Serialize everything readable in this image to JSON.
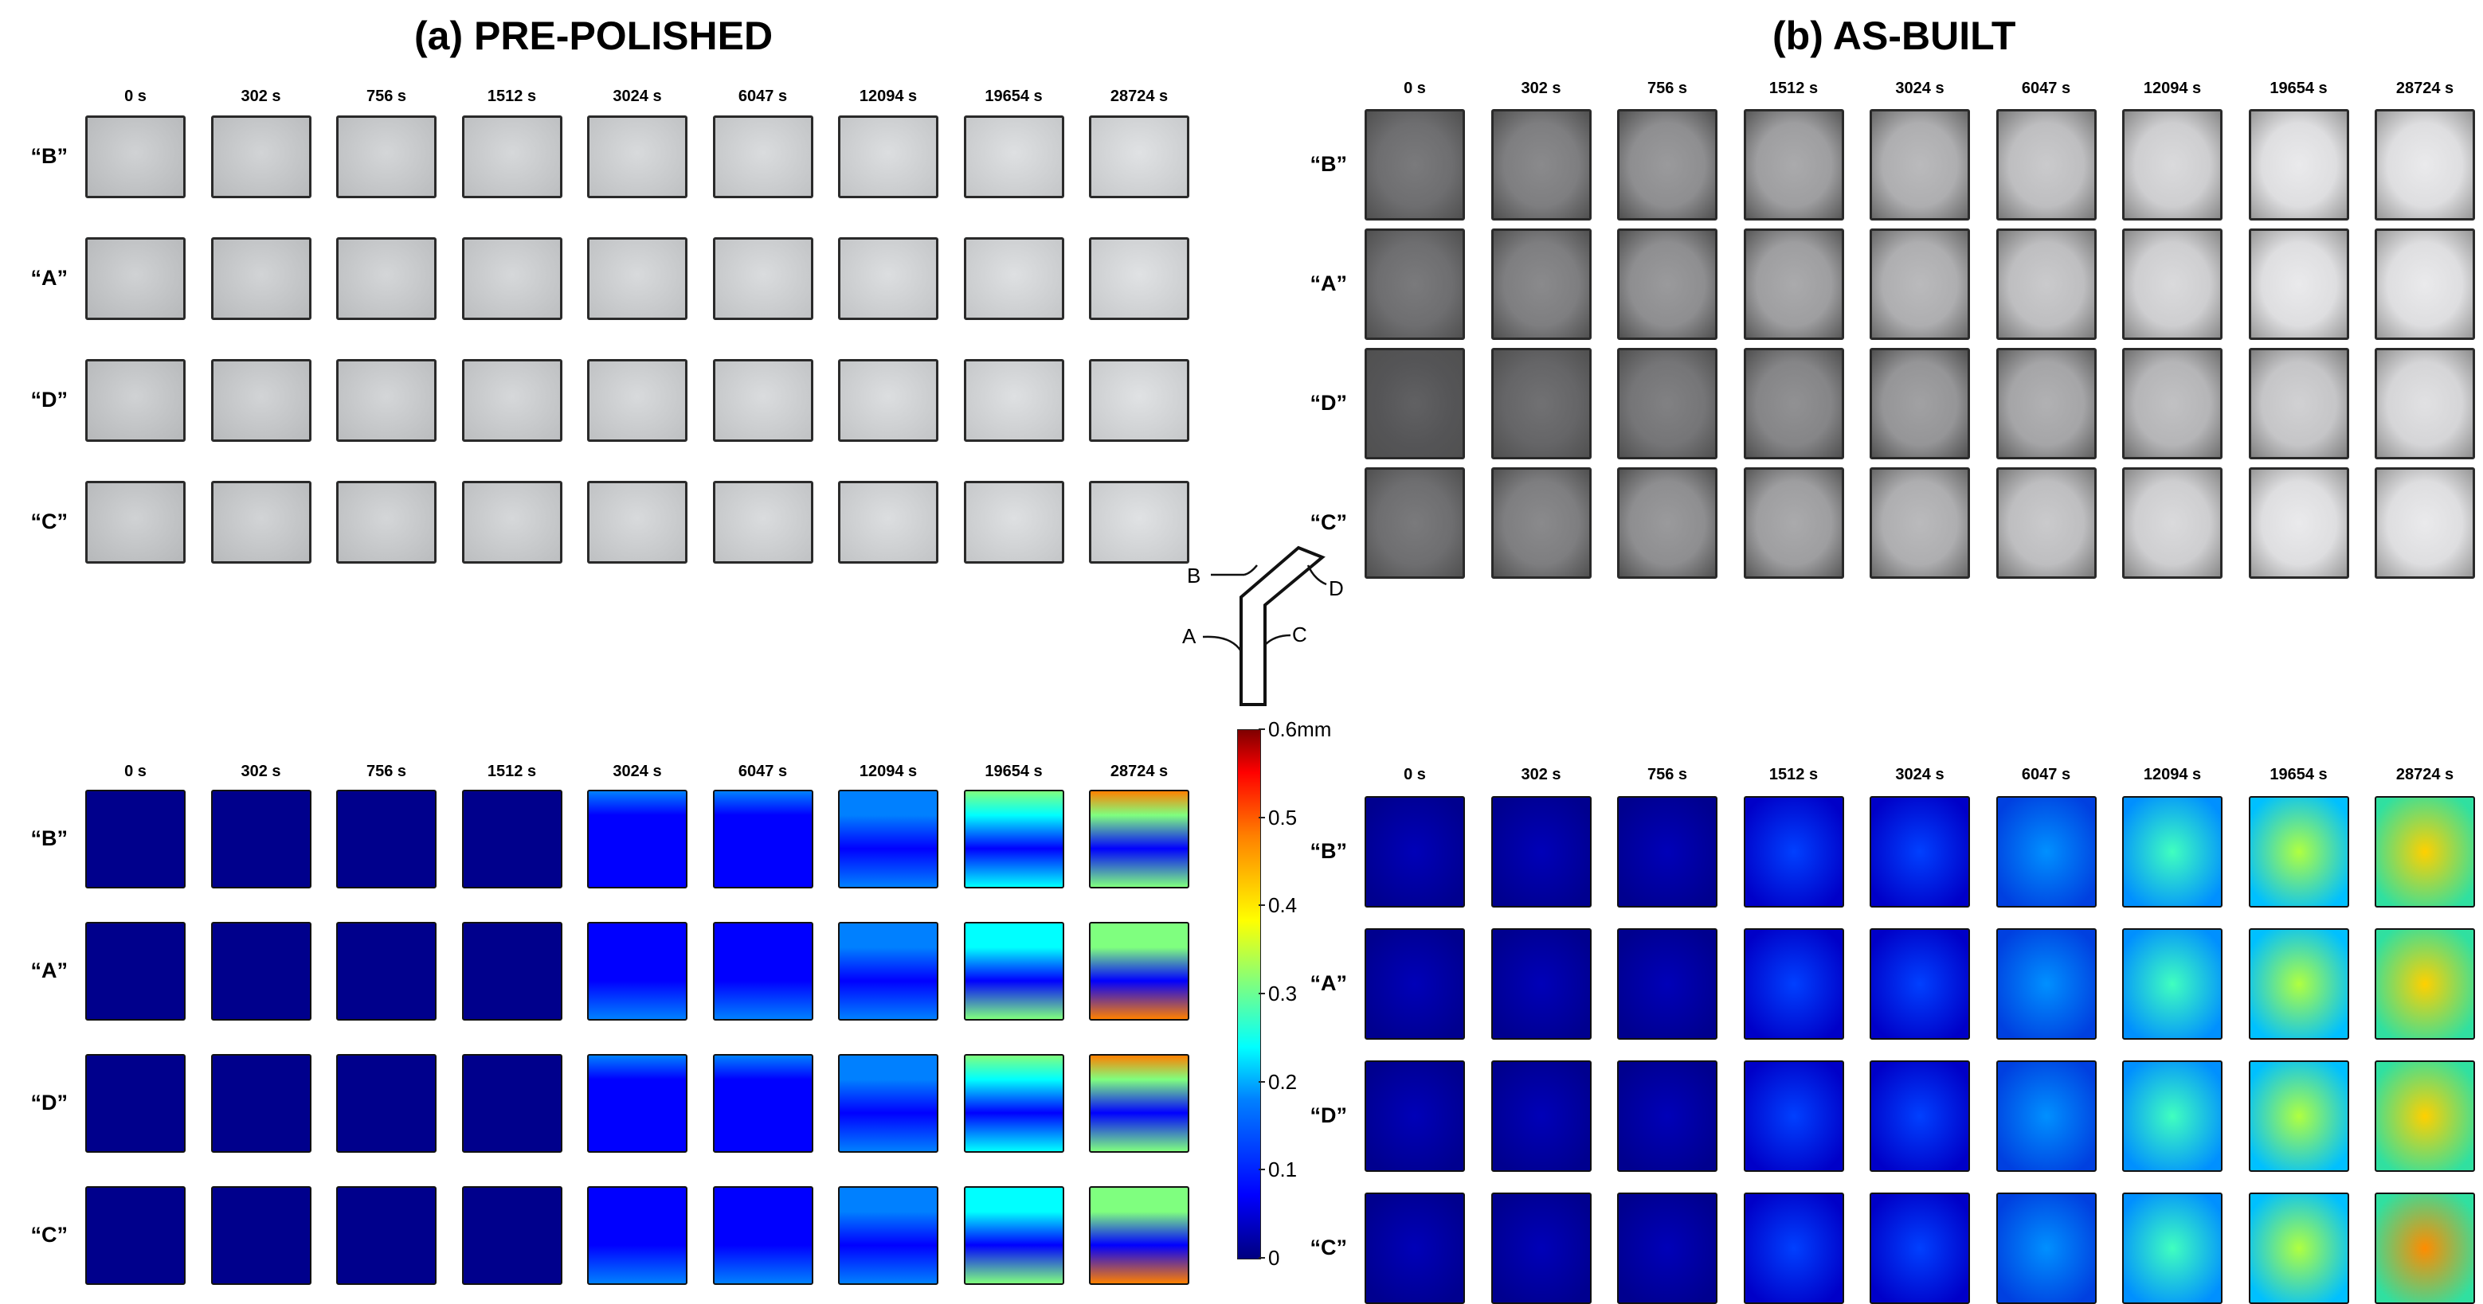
{
  "titles": {
    "left": "(a) PRE-POLISHED",
    "right": "(b) AS-BUILT"
  },
  "times": [
    "0 s",
    "302 s",
    "756 s",
    "1512 s",
    "3024 s",
    "6047 s",
    "12094 s",
    "19654 s",
    "28724 s"
  ],
  "rows_photo_left": [
    "“B”",
    "“A”",
    "“D”",
    "“C”"
  ],
  "rows_photo_right": [
    "“B”",
    "“A”",
    "“D”",
    "“C”"
  ],
  "rows_heat_left": [
    "“B”",
    "“A”",
    "“D”",
    "“C”"
  ],
  "rows_heat_right": [
    "“B”",
    "“A”",
    "“D”",
    "“C”"
  ],
  "schematic": {
    "labels": [
      "B",
      "D",
      "A",
      "C"
    ]
  },
  "colorbar": {
    "ticks": [
      "0.6mm",
      "0.5",
      "0.4",
      "0.3",
      "0.2",
      "0.1",
      "0"
    ],
    "min": 0,
    "max": 0.6,
    "colors": [
      "#00007f",
      "#0000ff",
      "#0080ff",
      "#00ffff",
      "#7fff7f",
      "#ffff00",
      "#ff8000",
      "#ff0000",
      "#7f0000"
    ]
  },
  "colors": {
    "photo_polished": "#c9c9c9",
    "photo_asbuilt_dark": "#5c5c5c",
    "photo_asbuilt_light": "#d8dadb",
    "heat_base": "#00008f"
  }
}
